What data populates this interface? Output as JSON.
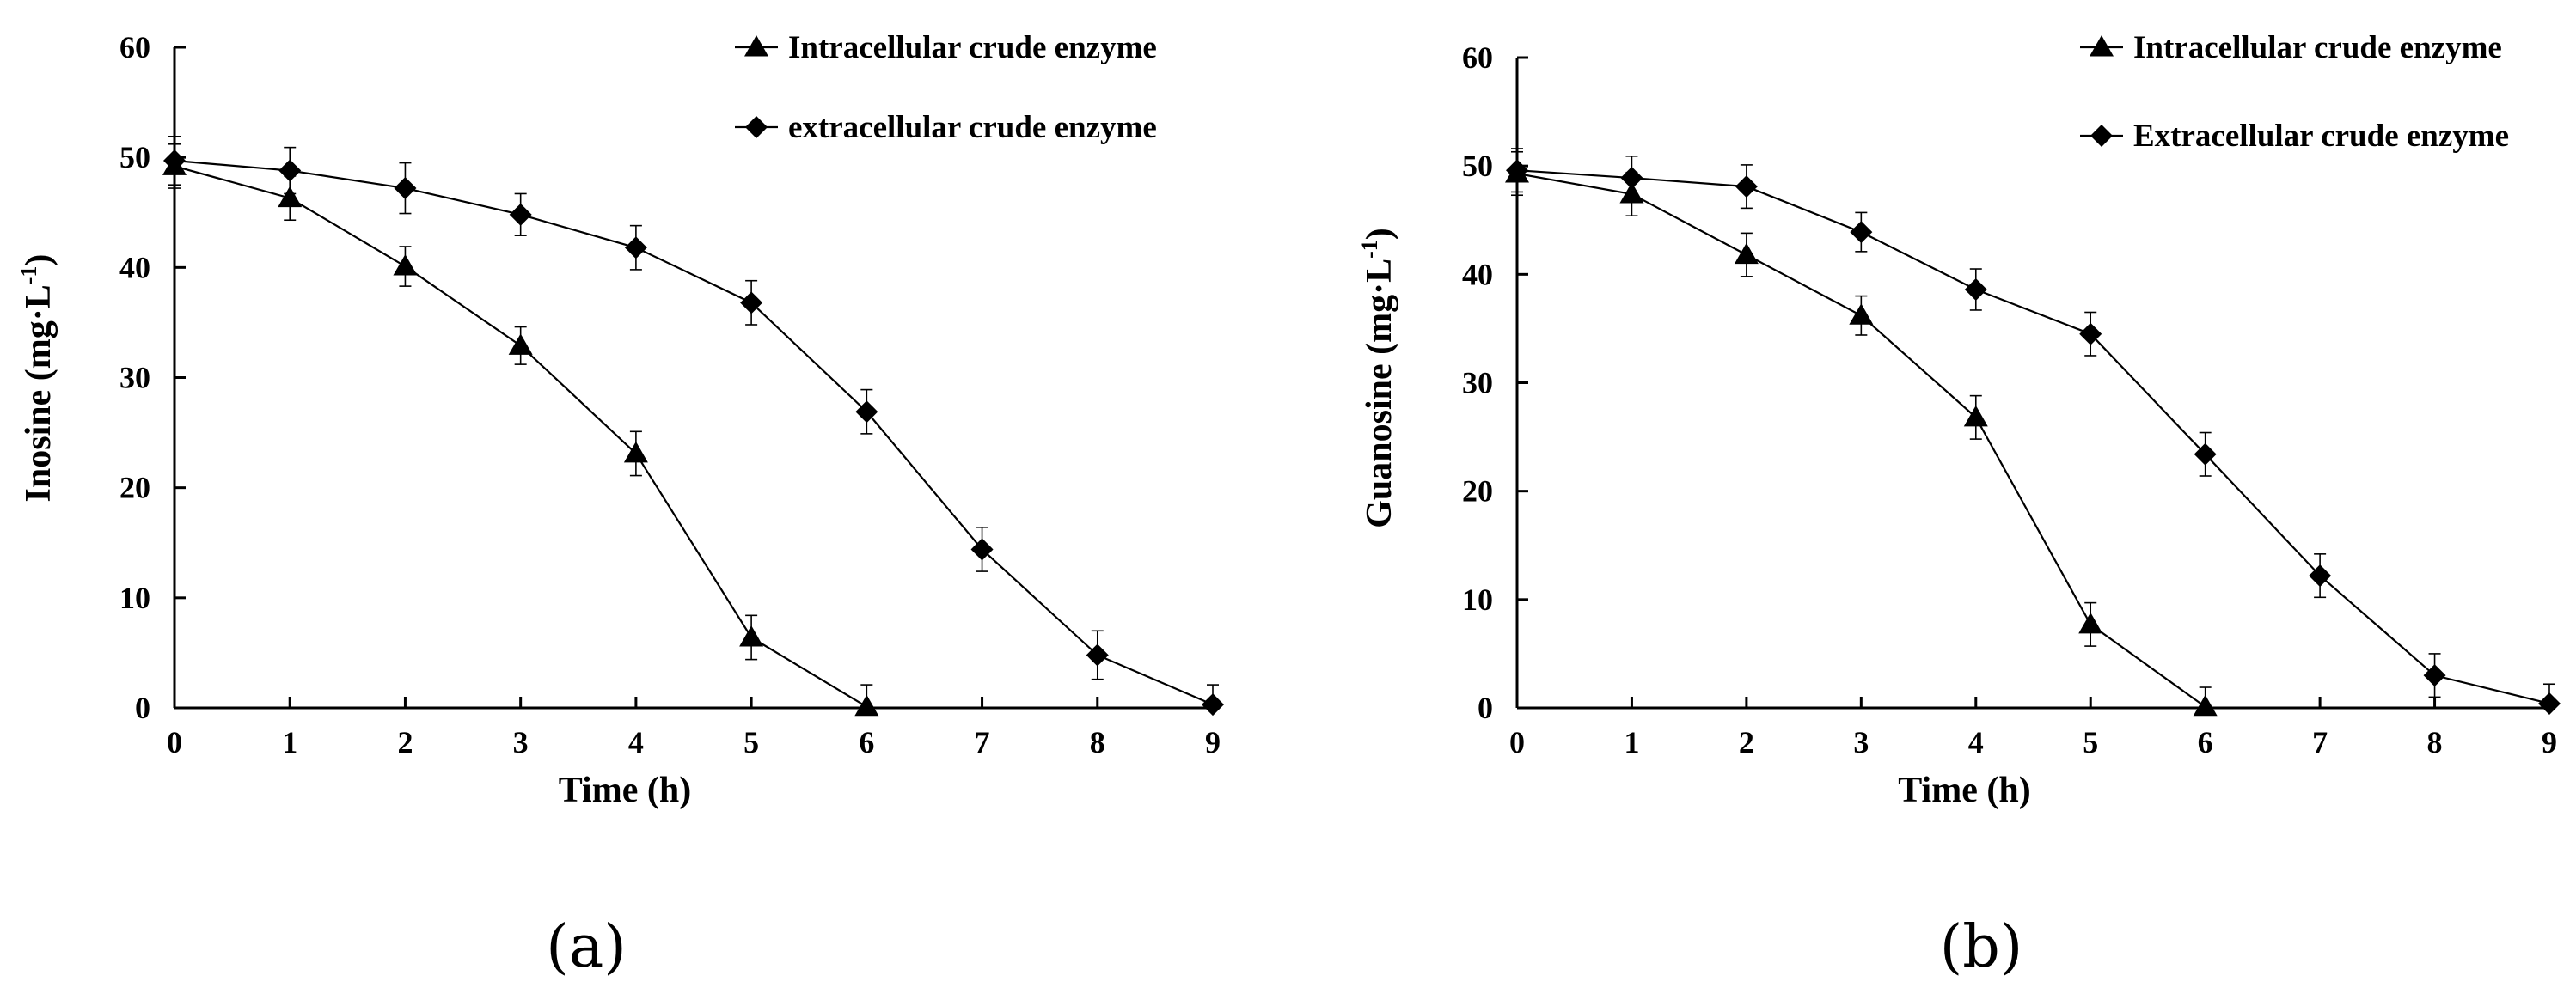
{
  "chart_data": [
    {
      "type": "line",
      "panel_label": "(a)",
      "xlabel": "Time (h)",
      "ylabel": "Inosine (mg·L",
      "ylabel_sup": "-1",
      "ylabel_close": ")",
      "xlim": [
        0,
        9
      ],
      "ylim": [
        0,
        60
      ],
      "x_ticks": [
        "0",
        "1",
        "2",
        "3",
        "4",
        "5",
        "6",
        "7",
        "8",
        "9"
      ],
      "y_ticks": [
        "0",
        "10",
        "20",
        "30",
        "40",
        "50",
        "60"
      ],
      "grid": false,
      "legend_position": "top-right",
      "series": [
        {
          "name": "Intracellular crude enzyme",
          "marker": "triangle",
          "x": [
            0,
            1,
            2,
            3,
            4,
            5,
            6
          ],
          "y": [
            49.2,
            46.3,
            40.1,
            32.9,
            23.1,
            6.4,
            0.1
          ],
          "err": [
            2.0,
            2.0,
            1.8,
            1.7,
            2.0,
            2.0,
            2.0
          ]
        },
        {
          "name": "extracellular crude enzyme",
          "marker": "diamond",
          "x": [
            0,
            1,
            2,
            3,
            4,
            5,
            6,
            7,
            8,
            9
          ],
          "y": [
            49.7,
            48.8,
            47.2,
            44.8,
            41.8,
            36.8,
            26.9,
            14.4,
            4.8,
            0.3
          ],
          "err": [
            2.2,
            2.1,
            2.3,
            1.9,
            2.0,
            2.0,
            2.0,
            2.0,
            2.2,
            1.8
          ]
        }
      ]
    },
    {
      "type": "line",
      "panel_label": "(b)",
      "xlabel": "Time (h)",
      "ylabel": "Guanosine (mg·L",
      "ylabel_sup": "-1",
      "ylabel_close": ")",
      "xlim": [
        0,
        9
      ],
      "ylim": [
        0,
        60
      ],
      "x_ticks": [
        "0",
        "1",
        "2",
        "3",
        "4",
        "5",
        "6",
        "7",
        "8",
        "9"
      ],
      "y_ticks": [
        "0",
        "10",
        "20",
        "30",
        "40",
        "50",
        "60"
      ],
      "grid": false,
      "legend_position": "top-right",
      "series": [
        {
          "name": "Intracellular crude enzyme",
          "marker": "triangle",
          "x": [
            0,
            1,
            2,
            3,
            4,
            5,
            6
          ],
          "y": [
            49.3,
            47.4,
            41.8,
            36.2,
            26.8,
            7.7,
            0.1
          ],
          "err": [
            2.0,
            2.0,
            2.0,
            1.8,
            2.0,
            2.0,
            1.8
          ]
        },
        {
          "name": "Extracellular crude enzyme",
          "marker": "diamond",
          "x": [
            0,
            1,
            2,
            3,
            4,
            5,
            6,
            7,
            8,
            9
          ],
          "y": [
            49.6,
            48.9,
            48.1,
            43.9,
            38.6,
            34.5,
            23.4,
            12.2,
            3.0,
            0.4
          ],
          "err": [
            2.0,
            2.0,
            2.0,
            1.8,
            1.9,
            2.0,
            2.0,
            2.0,
            2.0,
            1.8
          ]
        }
      ]
    }
  ],
  "colors": {
    "line": "#000000",
    "background": "#ffffff"
  }
}
